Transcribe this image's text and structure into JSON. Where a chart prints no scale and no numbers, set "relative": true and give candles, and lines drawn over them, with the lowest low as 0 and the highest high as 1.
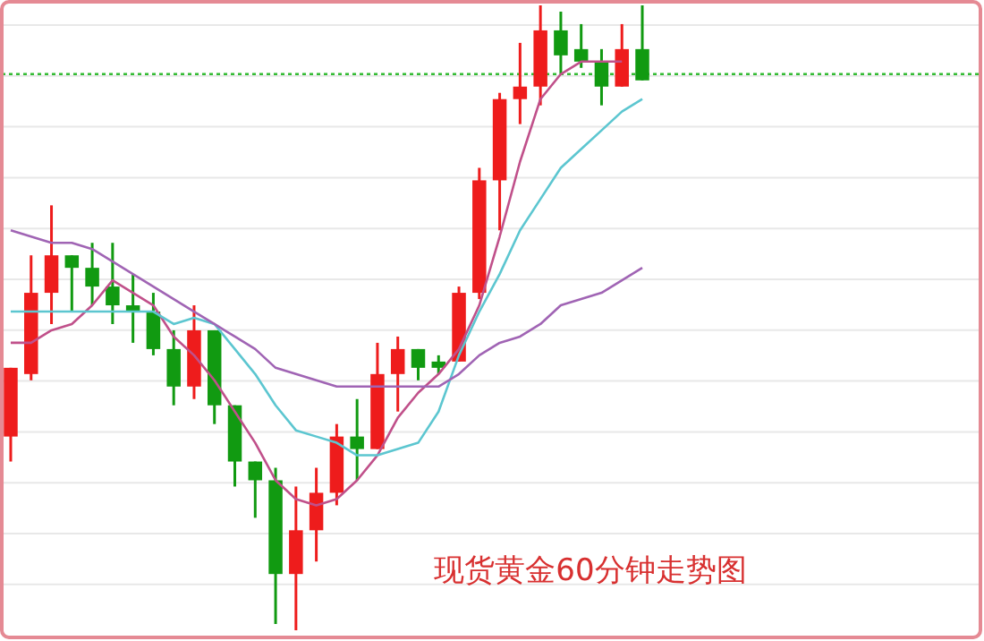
{
  "chart_data": {
    "type": "candlestick",
    "title": "现货黄金60分钟走势图",
    "relative": true,
    "grid": "y",
    "categories": [
      null,
      null,
      null,
      null,
      null,
      null,
      null,
      null,
      null,
      null,
      null,
      null,
      null,
      null,
      null,
      null,
      null,
      null,
      null,
      null,
      null,
      null,
      null,
      null,
      null,
      null,
      null,
      null,
      null,
      null,
      null,
      null
    ],
    "ohlc": [
      [
        0.31,
        0.42,
        0.27,
        0.42
      ],
      [
        0.41,
        0.6,
        0.4,
        0.54
      ],
      [
        0.54,
        0.68,
        0.49,
        0.6
      ],
      [
        0.6,
        0.6,
        0.51,
        0.58
      ],
      [
        0.58,
        0.62,
        0.52,
        0.55
      ],
      [
        0.55,
        0.62,
        0.49,
        0.52
      ],
      [
        0.52,
        0.57,
        0.46,
        0.51
      ],
      [
        0.51,
        0.54,
        0.44,
        0.45
      ],
      [
        0.45,
        0.48,
        0.36,
        0.39
      ],
      [
        0.39,
        0.52,
        0.37,
        0.48
      ],
      [
        0.48,
        0.48,
        0.33,
        0.36
      ],
      [
        0.36,
        0.36,
        0.23,
        0.27
      ],
      [
        0.27,
        0.27,
        0.18,
        0.24
      ],
      [
        0.24,
        0.26,
        0.01,
        0.09
      ],
      [
        0.09,
        0.23,
        0,
        0.16
      ],
      [
        0.16,
        0.26,
        0.11,
        0.22
      ],
      [
        0.22,
        0.33,
        0.2,
        0.31
      ],
      [
        0.31,
        0.37,
        0.24,
        0.29
      ],
      [
        0.29,
        0.46,
        0.29,
        0.41
      ],
      [
        0.41,
        0.47,
        0.35,
        0.45
      ],
      [
        0.45,
        0.45,
        0.4,
        0.42
      ],
      [
        0.43,
        0.44,
        0.41,
        0.42
      ],
      [
        0.43,
        0.55,
        0.43,
        0.54
      ],
      [
        0.54,
        0.74,
        0.53,
        0.72
      ],
      [
        0.72,
        0.86,
        0.64,
        0.85
      ],
      [
        0.85,
        0.94,
        0.81,
        0.87
      ],
      [
        0.87,
        1,
        0.84,
        0.96
      ],
      [
        0.96,
        0.99,
        0.89,
        0.92
      ],
      [
        0.93,
        0.97,
        0.9,
        0.91
      ],
      [
        0.91,
        0.93,
        0.84,
        0.87
      ],
      [
        0.87,
        0.97,
        0.87,
        0.93
      ],
      [
        0.93,
        1,
        0.88,
        0.88
      ]
    ],
    "colors": [
      "#ee1c1c",
      "#ee1c1c",
      "#ee1c1c",
      "#119a11",
      "#119a11",
      "#119a11",
      "#119a11",
      "#119a11",
      "#119a11",
      "#ee1c1c",
      "#119a11",
      "#119a11",
      "#119a11",
      "#119a11",
      "#ee1c1c",
      "#ee1c1c",
      "#ee1c1c",
      "#119a11",
      "#ee1c1c",
      "#ee1c1c",
      "#119a11",
      "#119a11",
      "#ee1c1c",
      "#ee1c1c",
      "#ee1c1c",
      "#ee1c1c",
      "#ee1c1c",
      "#119a11",
      "#119a11",
      "#119a11",
      "#ee1c1c",
      "#119a11"
    ],
    "series": [
      {
        "type": "line",
        "color": "#c0508a",
        "values": [
          0.46,
          0.46,
          0.48,
          0.49,
          0.52,
          0.56,
          0.54,
          0.52,
          0.47,
          0.44,
          0.4,
          0.35,
          0.3,
          0.24,
          0.21,
          0.2,
          0.21,
          0.24,
          0.28,
          0.34,
          0.38,
          0.41,
          0.45,
          0.52,
          0.63,
          0.75,
          0.85,
          0.89,
          0.91,
          0.91,
          0.91,
          null
        ]
      },
      {
        "type": "line",
        "color": "#5cc6d0",
        "values": [
          0.51,
          0.51,
          0.51,
          0.51,
          0.51,
          0.51,
          0.51,
          0.51,
          0.49,
          0.5,
          0.49,
          0.45,
          0.41,
          0.36,
          0.32,
          0.31,
          0.3,
          0.28,
          0.28,
          0.29,
          0.3,
          0.35,
          0.44,
          0.51,
          0.57,
          0.64,
          0.69,
          0.74,
          0.77,
          0.8,
          0.83,
          0.85
        ]
      },
      {
        "type": "line",
        "color": "#a064b4",
        "values": [
          0.64,
          0.63,
          0.62,
          0.62,
          0.61,
          0.59,
          0.57,
          0.55,
          0.53,
          0.51,
          0.49,
          0.47,
          0.45,
          0.42,
          0.41,
          0.4,
          0.39,
          0.39,
          0.39,
          0.39,
          0.39,
          0.39,
          0.41,
          0.44,
          0.46,
          0.47,
          0.49,
          0.52,
          0.53,
          0.54,
          0.56,
          0.58
        ]
      }
    ],
    "ref_lines": [
      {
        "axis": "y",
        "value": 0.89,
        "color": "#33bb33",
        "line_style": "dotted"
      }
    ]
  }
}
